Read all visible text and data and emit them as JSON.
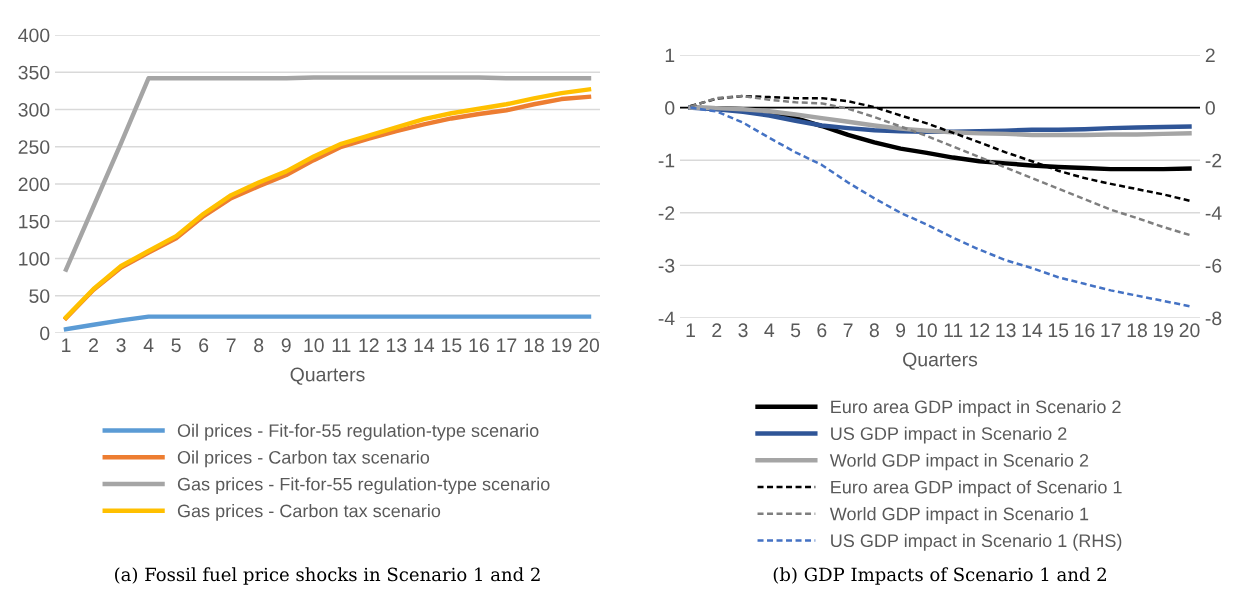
{
  "chart_data": [
    {
      "type": "line",
      "xlabel": "Quarters",
      "categories": [
        "1",
        "2",
        "3",
        "4",
        "5",
        "6",
        "7",
        "8",
        "9",
        "10",
        "11",
        "12",
        "13",
        "14",
        "15",
        "16",
        "17",
        "18",
        "19",
        "20"
      ],
      "ylim": [
        0,
        400
      ],
      "yticks": [
        0,
        50,
        100,
        150,
        200,
        250,
        300,
        350,
        400
      ],
      "grid": "y",
      "legend": "bottom",
      "line_style": "solid",
      "marker": "none",
      "annotations": [
        "(a) Fossil fuel price shocks in Scenario 1 and 2"
      ],
      "series": [
        {
          "name": "Oil prices - Fit-for-55 regulation-type scenario",
          "color": "#5b9bd5",
          "values": [
            5,
            11,
            17,
            22,
            22,
            22,
            22,
            22,
            22,
            22,
            22,
            22,
            22,
            22,
            22,
            22,
            22,
            22,
            22,
            22
          ]
        },
        {
          "name": "Oil prices - Carbon tax scenario",
          "color": "#ed7d31",
          "values": [
            20,
            58,
            88,
            108,
            127,
            157,
            181,
            197,
            212,
            232,
            250,
            261,
            271,
            280,
            288,
            294,
            299,
            307,
            314,
            317
          ]
        },
        {
          "name": "Gas prices - Fit-for-55 regulation-type scenario",
          "color": "#a5a5a5",
          "values": [
            85,
            170,
            255,
            342,
            342,
            342,
            342,
            342,
            342,
            343,
            343,
            343,
            343,
            343,
            343,
            343,
            342,
            342,
            342,
            342
          ]
        },
        {
          "name": "Gas prices - Carbon tax scenario",
          "color": "#ffc000",
          "values": [
            21,
            59,
            90,
            110,
            130,
            160,
            185,
            202,
            217,
            237,
            254,
            265,
            276,
            287,
            295,
            301,
            307,
            315,
            322,
            327
          ]
        }
      ]
    },
    {
      "type": "line",
      "xlabel": "Quarters",
      "categories": [
        "1",
        "2",
        "3",
        "4",
        "5",
        "6",
        "7",
        "8",
        "9",
        "10",
        "11",
        "12",
        "13",
        "14",
        "15",
        "16",
        "17",
        "18",
        "19",
        "20"
      ],
      "ylim": [
        -4,
        1
      ],
      "yticks": [
        -4,
        -3,
        -2,
        -1,
        0,
        1
      ],
      "y2lim": [
        -8,
        2
      ],
      "y2ticks": [
        -8,
        -6,
        -4,
        -2,
        0,
        2
      ],
      "grid": "y",
      "legend": "bottom",
      "marker": "none",
      "ref_lines": [
        {
          "axis": "y",
          "value": 0,
          "color": "#000000",
          "line_style": "solid"
        }
      ],
      "annotations": [
        "(b) GDP Impacts of Scenario 1 and 2"
      ],
      "series": [
        {
          "name": "Euro area GDP impact in Scenario 2",
          "color": "#000000",
          "line_style": "solid",
          "values": [
            0,
            -0.01,
            -0.03,
            -0.1,
            -0.2,
            -0.35,
            -0.52,
            -0.66,
            -0.78,
            -0.86,
            -0.95,
            -1.02,
            -1.06,
            -1.1,
            -1.13,
            -1.15,
            -1.17,
            -1.17,
            -1.17,
            -1.16
          ]
        },
        {
          "name": "US GDP impact in Scenario 2",
          "color": "#2f5597",
          "line_style": "solid",
          "values": [
            0,
            -0.03,
            -0.08,
            -0.15,
            -0.25,
            -0.34,
            -0.39,
            -0.43,
            -0.45,
            -0.46,
            -0.46,
            -0.45,
            -0.44,
            -0.42,
            -0.42,
            -0.41,
            -0.39,
            -0.38,
            -0.37,
            -0.36
          ]
        },
        {
          "name": "World GDP impact in Scenario 2",
          "color": "#a5a5a5",
          "line_style": "solid",
          "values": [
            0,
            -0.01,
            -0.03,
            -0.07,
            -0.13,
            -0.2,
            -0.27,
            -0.34,
            -0.4,
            -0.44,
            -0.47,
            -0.49,
            -0.5,
            -0.52,
            -0.52,
            -0.52,
            -0.51,
            -0.51,
            -0.5,
            -0.49
          ]
        },
        {
          "name": "Euro area GDP impact of Scenario 1",
          "color": "#000000",
          "line_style": "dashed",
          "values": [
            0.03,
            0.17,
            0.22,
            0.2,
            0.18,
            0.18,
            0.12,
            0.01,
            -0.15,
            -0.3,
            -0.48,
            -0.66,
            -0.85,
            -1.02,
            -1.2,
            -1.34,
            -1.45,
            -1.55,
            -1.65,
            -1.77
          ]
        },
        {
          "name": "World GDP impact in Scenario 1",
          "color": "#7f7f7f",
          "line_style": "dashed",
          "values": [
            0.02,
            0.18,
            0.22,
            0.15,
            0.1,
            0.08,
            -0.02,
            -0.18,
            -0.36,
            -0.54,
            -0.74,
            -0.94,
            -1.14,
            -1.34,
            -1.54,
            -1.74,
            -1.94,
            -2.1,
            -2.27,
            -2.42
          ]
        },
        {
          "name": "US GDP impact in Scenario 1 (RHS)",
          "color": "#4472c4",
          "line_style": "dashed",
          "axis": "y2",
          "values": [
            0,
            -0.15,
            -0.57,
            -1.15,
            -1.7,
            -2.18,
            -2.85,
            -3.45,
            -4.0,
            -4.45,
            -4.95,
            -5.4,
            -5.8,
            -6.1,
            -6.45,
            -6.7,
            -6.95,
            -7.15,
            -7.35,
            -7.55
          ]
        }
      ]
    }
  ]
}
